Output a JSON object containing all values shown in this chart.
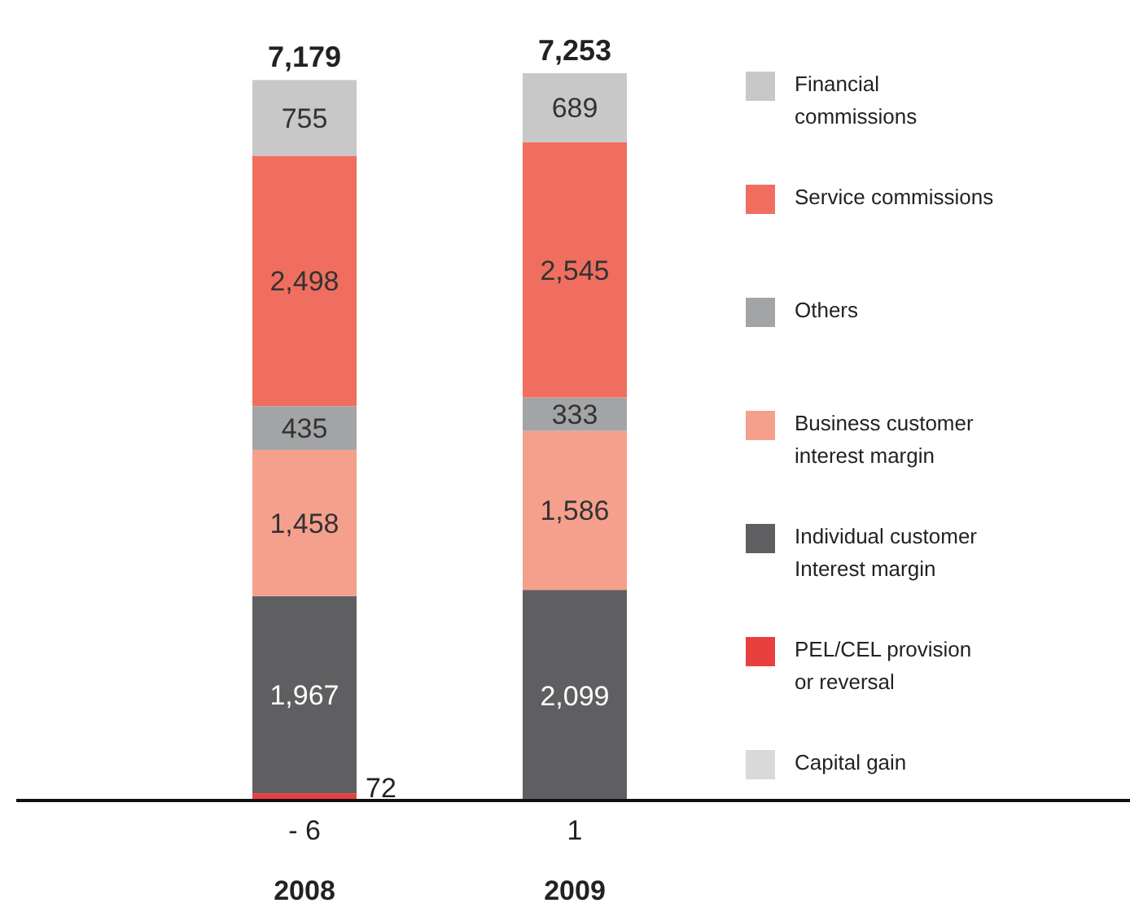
{
  "chart_data": {
    "type": "bar",
    "stacked": true,
    "categories": [
      "2008",
      "2009"
    ],
    "legend": "right",
    "totals": [
      "7,179",
      "7,253"
    ],
    "series": [
      {
        "name": "Capital gain",
        "color": "#d9d9d9",
        "values": [
          -6,
          1
        ],
        "value_labels": [
          "- 6",
          "1"
        ]
      },
      {
        "name": "PEL/CEL provision or reversal",
        "color": "#e8403f",
        "values": [
          72,
          null
        ],
        "value_labels": [
          "72",
          null
        ]
      },
      {
        "name": "Individual customer Interest margin",
        "color": "#5f5f61",
        "values": [
          1967,
          2099
        ],
        "value_labels": [
          "1,967",
          "2,099"
        ]
      },
      {
        "name": "Business customer interest margin",
        "color": "#f5a08c",
        "values": [
          1458,
          1586
        ],
        "value_labels": [
          "1,458",
          "1,586"
        ]
      },
      {
        "name": "Others",
        "color": "#a3a4a6",
        "values": [
          435,
          333
        ],
        "value_labels": [
          "435",
          "333"
        ]
      },
      {
        "name": "Service commissions",
        "color": "#f06e5f",
        "values": [
          2498,
          2545
        ],
        "value_labels": [
          "2,498",
          "2,545"
        ]
      },
      {
        "name": "Financial commissions",
        "color": "#c8c8c9",
        "values": [
          755,
          689
        ],
        "value_labels": [
          "755",
          "689"
        ]
      }
    ]
  }
}
